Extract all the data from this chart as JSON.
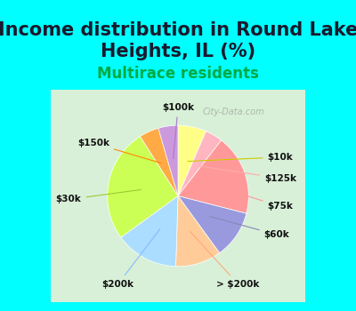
{
  "title": "Income distribution in Round Lake\nHeights, IL (%)",
  "subtitle": "Multirace residents",
  "background_color": "#00FFFF",
  "chart_bg_color_top_left": "#d8f0d8",
  "chart_bg_color_bottom_right": "#c8eec8",
  "labels": [
    "$10k",
    "$125k",
    "$75k",
    "$60k",
    "> $200k",
    "$200k",
    "$30k",
    "$150k",
    "$100k"
  ],
  "values": [
    6.5,
    4.0,
    18.5,
    11.0,
    10.5,
    14.5,
    26.0,
    4.5,
    4.5
  ],
  "colors": [
    "#FFFF99",
    "#FFB6C1",
    "#FFB6C1",
    "#9999DD",
    "#FFCC99",
    "#AADDFF",
    "#CCFF66",
    "#FFAA44",
    "#CC99CC"
  ],
  "wedge_colors": [
    "#FFFF88",
    "#FFB6C8",
    "#FFB6C8",
    "#8888CC",
    "#FFCC88",
    "#AADDFF",
    "#BBFF55",
    "#FFAA44",
    "#BB88CC"
  ],
  "title_fontsize": 15,
  "subtitle_fontsize": 12,
  "watermark": "City-Data.com"
}
